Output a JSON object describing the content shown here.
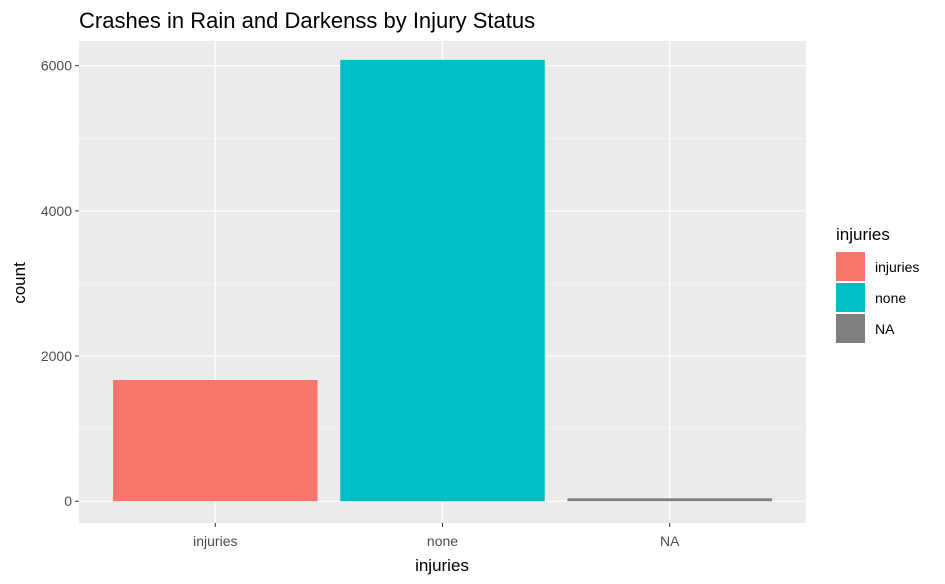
{
  "chart_data": {
    "type": "bar",
    "title": "Crashes in Rain and Darkenss by Injury Status",
    "xlabel": "injuries",
    "ylabel": "count",
    "categories": [
      "injuries",
      "none",
      "NA"
    ],
    "values": [
      1670,
      6080,
      40
    ],
    "colors": [
      "#F8766D",
      "#00BFC4",
      "#7F7F7F"
    ],
    "ylim": [
      -300,
      6340
    ],
    "yticks": [
      0,
      2000,
      4000,
      6000
    ],
    "ytick_labels": [
      "0",
      "2000",
      "4000",
      "6000"
    ],
    "grid": true,
    "legend": {
      "title": "injuries",
      "position": "right",
      "entries": [
        "injuries",
        "none",
        "NA"
      ]
    }
  }
}
